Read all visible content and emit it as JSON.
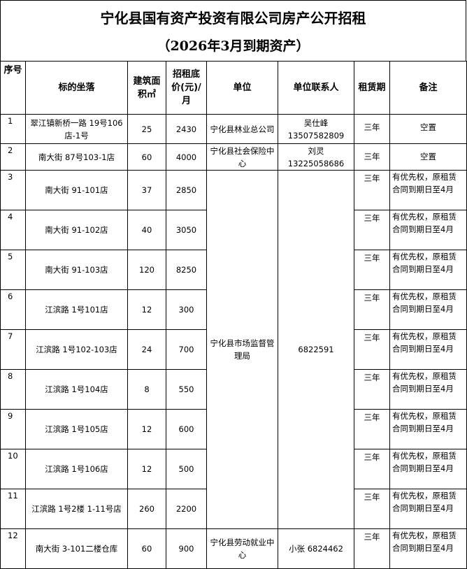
{
  "title": {
    "line1": "宁化县国有资产投资有限公司房产公开招租",
    "line2": "（2026年3月到期资产）"
  },
  "headers": {
    "no": "序号",
    "location": "标的坐落",
    "area": "建筑面积㎡",
    "price": "招租底价(元)/月",
    "unit": "单位",
    "contact": "单位联系人",
    "term": "租赁期",
    "note": "备注"
  },
  "rows": [
    {
      "no": "1",
      "location": "翠江镇新桥一路 19号106店-1号",
      "area": "25",
      "price": "2430",
      "unit": "宁化县林业总公司",
      "contact": "吴仕峰 13507582809",
      "term": "三年",
      "note": "空置"
    },
    {
      "no": "2",
      "location": "南大街 87号103-1店",
      "area": "60",
      "price": "4000",
      "unit": "宁化县社会保险中心",
      "contact": "刘灵 13225058686",
      "term": "三年",
      "note": "空置"
    },
    {
      "no": "3",
      "location": "南大街 91-101店",
      "area": "37",
      "price": "2850",
      "term": "三年",
      "note": "有优先权，原租赁合同到期日至4月"
    },
    {
      "no": "4",
      "location": "南大街 91-102店",
      "area": "40",
      "price": "3050",
      "term": "三年",
      "note": "有优先权，原租赁合同到期日至4月"
    },
    {
      "no": "5",
      "location": "南大街 91-103店",
      "area": "120",
      "price": "8250",
      "term": "三年",
      "note": "有优先权，原租赁合同到期日至4月"
    },
    {
      "no": "6",
      "location": "江滨路 1号101店",
      "area": "12",
      "price": "300",
      "term": "三年",
      "note": "有优先权，原租赁合同到期日至4月"
    },
    {
      "no": "7",
      "location": "江滨路 1号102-103店",
      "area": "24",
      "price": "700",
      "term": "三年",
      "note": "有优先权，原租赁合同到期日至4月"
    },
    {
      "no": "8",
      "location": "江滨路 1号104店",
      "area": "8",
      "price": "550",
      "term": "三年",
      "note": "有优先权，原租赁合同到期日至4月"
    },
    {
      "no": "9",
      "location": "江滨路 1号105店",
      "area": "12",
      "price": "600",
      "term": "三年",
      "note": "有优先权，原租赁合同到期日至4月"
    },
    {
      "no": "10",
      "location": "江滨路 1号106店",
      "area": "12",
      "price": "500",
      "term": "三年",
      "note": "有优先权，原租赁合同到期日至4月"
    },
    {
      "no": "11",
      "location": "江滨路 1号2楼 1-11号店",
      "area": "260",
      "price": "2200",
      "term": "三年",
      "note": "有优先权，原租赁合同到期日至4月"
    },
    {
      "no": "12",
      "location": "南大街 3-101二楼仓库",
      "area": "60",
      "price": "900",
      "unit": "宁化县劳动就业中心",
      "contact": "小张 6824462",
      "term": "三年",
      "note": "有优先权，原租赁合同到期日至4月"
    }
  ],
  "merged": {
    "unit": "宁化县市场监督管理局",
    "contact": "6822591"
  }
}
